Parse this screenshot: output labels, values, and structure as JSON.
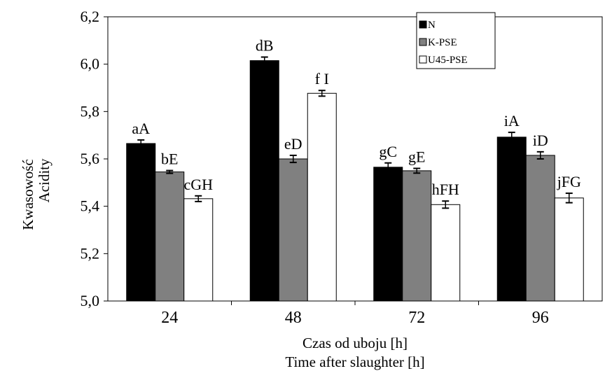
{
  "chart_data": {
    "type": "bar",
    "categories": [
      "24",
      "48",
      "72",
      "96"
    ],
    "series": [
      {
        "name": "N",
        "color": "#000000",
        "values": [
          5.665,
          6.015,
          5.565,
          5.692
        ],
        "errors": [
          0.015,
          0.015,
          0.018,
          0.02
        ],
        "labels": [
          "aA",
          "dB",
          "gC",
          "iA"
        ]
      },
      {
        "name": "K-PSE",
        "color": "#808080",
        "values": [
          5.545,
          5.6,
          5.55,
          5.615
        ],
        "errors": [
          0.006,
          0.015,
          0.01,
          0.015
        ],
        "labels": [
          "bE",
          "eD",
          "gE",
          "iD"
        ]
      },
      {
        "name": "U45-PSE",
        "color": "#ffffff",
        "values": [
          5.432,
          5.877,
          5.407,
          5.435
        ],
        "errors": [
          0.012,
          0.012,
          0.015,
          0.02
        ],
        "labels": [
          "cGH",
          "f I",
          "hFH",
          "jFG"
        ]
      }
    ],
    "y_ticks": [
      "5,0",
      "5,2",
      "5,4",
      "5,6",
      "5,8",
      "6,0",
      "6,2"
    ],
    "ylim": [
      5.0,
      6.2
    ],
    "ylabel_line1": "Kwasowość",
    "ylabel_line2": "Acidity",
    "xlabel_line1": "Czas od uboju [h]",
    "xlabel_line2": "Time after slaughter [h]",
    "grid": false,
    "error_bars": true,
    "legend_position": "top-right"
  }
}
